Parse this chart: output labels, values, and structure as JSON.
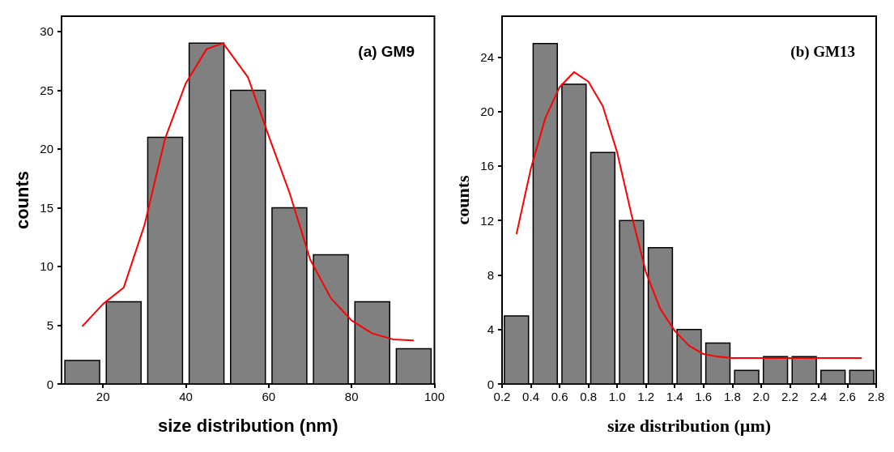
{
  "chart_data": [
    {
      "type": "histogram",
      "xlabel": "size distribution (nm)",
      "ylabel": "counts",
      "annotations": [
        "(a) GM9"
      ],
      "bins": [
        10,
        20,
        30,
        40,
        50,
        60,
        70,
        80,
        90,
        100
      ],
      "values": [
        2,
        7,
        21,
        29,
        25,
        15,
        11,
        7,
        3
      ],
      "color": "#808080",
      "xlim": [
        10,
        100
      ],
      "xticks": [
        20,
        40,
        60,
        80,
        100
      ],
      "ylim": [
        0,
        31.3
      ],
      "yticks": [
        0,
        5,
        10,
        15,
        20,
        25,
        30
      ],
      "series": [
        {
          "type": "line",
          "color": "#ff0000",
          "x": [
            15,
            20,
            25,
            30,
            35,
            40,
            45,
            49,
            55,
            60,
            65,
            70,
            75,
            80,
            85,
            90,
            95
          ],
          "values": [
            4.9,
            6.8,
            8.2,
            13.5,
            20.9,
            25.6,
            28.5,
            29,
            26.1,
            21.1,
            16.3,
            10.6,
            7.3,
            5.4,
            4.3,
            3.8,
            3.7
          ]
        }
      ]
    },
    {
      "type": "histogram",
      "xlabel": "size distribution (µm)",
      "ylabel": "counts",
      "annotations": [
        "(b) GM13"
      ],
      "bins": [
        0.2,
        0.4,
        0.6,
        0.8,
        1.0,
        1.2,
        1.4,
        1.6,
        1.8,
        2.0,
        2.2,
        2.4,
        2.6,
        2.8
      ],
      "values": [
        5,
        25,
        22,
        17,
        12,
        10,
        4,
        3,
        1,
        2,
        2,
        1,
        1
      ],
      "color": "#808080",
      "xlim": [
        0.2,
        2.8
      ],
      "xticks": [
        0.2,
        0.4,
        0.6,
        0.8,
        {
          "value": 1,
          "label": "1.0"
        },
        1.2,
        1.4,
        1.6,
        1.8,
        {
          "value": 2,
          "label": "2.0"
        },
        2.2,
        2.4,
        2.6,
        2.8
      ],
      "ylim": [
        0,
        27
      ],
      "yticks": [
        0,
        4,
        8,
        12,
        16,
        20,
        24
      ],
      "series": [
        {
          "type": "line",
          "color": "#ff0000",
          "x": [
            0.3,
            0.4,
            0.5,
            0.6,
            0.7,
            0.8,
            0.9,
            1.0,
            1.1,
            1.2,
            1.3,
            1.4,
            1.5,
            1.6,
            1.7,
            1.8,
            2.0,
            2.7
          ],
          "values": [
            11,
            15.8,
            19.5,
            21.8,
            22.9,
            22.2,
            20.4,
            17,
            12.4,
            8.2,
            5.5,
            3.9,
            2.8,
            2.2,
            2,
            1.9,
            1.9,
            1.9
          ]
        }
      ]
    }
  ]
}
